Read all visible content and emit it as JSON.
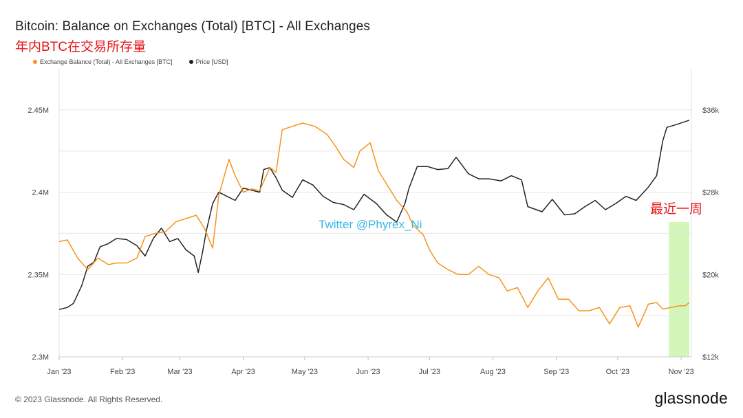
{
  "title": "Bitcoin: Balance on Exchanges (Total) [BTC] - All Exchanges",
  "subtitle": "年内BTC在交易所存量",
  "watermark": "Twitter @Phyrex_Ni",
  "annotation": "最近一周",
  "footer": "© 2023 Glassnode. All Rights Reserved.",
  "brand": "glassnode",
  "colors": {
    "balance": "#f7931a",
    "price": "#222222",
    "highlight": "#c6f3a0",
    "annotation": "#e8141a",
    "watermark": "#38b6e6"
  },
  "chart_data": {
    "type": "line",
    "title": "Bitcoin: Balance on Exchanges (Total) [BTC] - All Exchanges",
    "x_ticks": [
      "Jan '23",
      "Feb '23",
      "Mar '23",
      "Apr '23",
      "May '23",
      "Jun '23",
      "Jul '23",
      "Aug '23",
      "Sep '23",
      "Oct '23",
      "Nov '23"
    ],
    "y_left": {
      "ticks": [
        "2.3M",
        "2.35M",
        "2.4M",
        "2.45M"
      ],
      "tick_values": [
        2.3,
        2.35,
        2.4,
        2.45
      ],
      "range": [
        2.3,
        2.475
      ]
    },
    "y_right": {
      "ticks": [
        "$12k",
        "$20k",
        "$28k",
        "$36k"
      ],
      "tick_values": [
        12,
        20,
        28,
        36
      ],
      "range": [
        12,
        40
      ]
    },
    "grid": "horizontal",
    "legend_position": "top-left",
    "highlight_range": [
      "2023-10-26",
      "2023-11-05"
    ],
    "series": [
      {
        "name": "Exchange Balance (Total) - All Exchanges [BTC]",
        "axis": "left",
        "x": [
          "2023-01-01",
          "2023-01-05",
          "2023-01-10",
          "2023-01-15",
          "2023-01-20",
          "2023-01-25",
          "2023-01-29",
          "2023-02-03",
          "2023-02-08",
          "2023-02-12",
          "2023-02-17",
          "2023-02-22",
          "2023-02-27",
          "2023-03-04",
          "2023-03-09",
          "2023-03-13",
          "2023-03-17",
          "2023-03-20",
          "2023-03-25",
          "2023-03-28",
          "2023-04-01",
          "2023-04-05",
          "2023-04-09",
          "2023-04-14",
          "2023-04-17",
          "2023-04-20",
          "2023-04-25",
          "2023-04-30",
          "2023-05-06",
          "2023-05-12",
          "2023-05-16",
          "2023-05-20",
          "2023-05-25",
          "2023-05-28",
          "2023-06-02",
          "2023-06-06",
          "2023-06-10",
          "2023-06-15",
          "2023-06-20",
          "2023-06-23",
          "2023-06-28",
          "2023-07-01",
          "2023-07-05",
          "2023-07-10",
          "2023-07-15",
          "2023-07-20",
          "2023-07-25",
          "2023-07-30",
          "2023-08-04",
          "2023-08-08",
          "2023-08-13",
          "2023-08-18",
          "2023-08-23",
          "2023-08-28",
          "2023-09-02",
          "2023-09-07",
          "2023-09-12",
          "2023-09-17",
          "2023-09-22",
          "2023-09-27",
          "2023-10-02",
          "2023-10-07",
          "2023-10-11",
          "2023-10-16",
          "2023-10-20",
          "2023-10-23",
          "2023-10-27",
          "2023-10-31",
          "2023-11-03",
          "2023-11-05"
        ],
        "values": [
          2.37,
          2.371,
          2.36,
          2.353,
          2.36,
          2.356,
          2.357,
          2.357,
          2.36,
          2.373,
          2.375,
          2.376,
          2.382,
          2.384,
          2.386,
          2.378,
          2.366,
          2.398,
          2.42,
          2.41,
          2.4,
          2.402,
          2.401,
          2.415,
          2.412,
          2.438,
          2.44,
          2.442,
          2.44,
          2.435,
          2.428,
          2.42,
          2.415,
          2.425,
          2.43,
          2.413,
          2.405,
          2.395,
          2.388,
          2.38,
          2.374,
          2.365,
          2.357,
          2.353,
          2.35,
          2.35,
          2.355,
          2.35,
          2.348,
          2.34,
          2.342,
          2.33,
          2.34,
          2.348,
          2.335,
          2.335,
          2.328,
          2.328,
          2.33,
          2.32,
          2.33,
          2.331,
          2.318,
          2.332,
          2.333,
          2.329,
          2.33,
          2.331,
          2.331,
          2.333
        ]
      },
      {
        "name": "Price [USD]",
        "axis": "right",
        "x": [
          "2023-01-01",
          "2023-01-05",
          "2023-01-08",
          "2023-01-12",
          "2023-01-15",
          "2023-01-18",
          "2023-01-21",
          "2023-01-25",
          "2023-01-29",
          "2023-02-03",
          "2023-02-08",
          "2023-02-12",
          "2023-02-16",
          "2023-02-20",
          "2023-02-24",
          "2023-02-28",
          "2023-03-04",
          "2023-03-08",
          "2023-03-10",
          "2023-03-12",
          "2023-03-14",
          "2023-03-17",
          "2023-03-20",
          "2023-03-24",
          "2023-03-28",
          "2023-04-01",
          "2023-04-05",
          "2023-04-09",
          "2023-04-11",
          "2023-04-14",
          "2023-04-17",
          "2023-04-20",
          "2023-04-25",
          "2023-04-30",
          "2023-05-05",
          "2023-05-10",
          "2023-05-15",
          "2023-05-20",
          "2023-05-25",
          "2023-05-30",
          "2023-06-05",
          "2023-06-10",
          "2023-06-15",
          "2023-06-19",
          "2023-06-21",
          "2023-06-25",
          "2023-06-30",
          "2023-07-05",
          "2023-07-10",
          "2023-07-14",
          "2023-07-20",
          "2023-07-25",
          "2023-07-30",
          "2023-08-05",
          "2023-08-10",
          "2023-08-15",
          "2023-08-18",
          "2023-08-25",
          "2023-08-30",
          "2023-09-05",
          "2023-09-10",
          "2023-09-15",
          "2023-09-20",
          "2023-09-25",
          "2023-09-30",
          "2023-10-05",
          "2023-10-10",
          "2023-10-16",
          "2023-10-20",
          "2023-10-23",
          "2023-10-25",
          "2023-10-30",
          "2023-11-05"
        ],
        "values": [
          16.6,
          16.8,
          17.2,
          18.9,
          20.8,
          21.2,
          22.7,
          23.0,
          23.5,
          23.4,
          22.8,
          21.8,
          23.5,
          24.5,
          23.2,
          23.5,
          22.4,
          21.8,
          20.2,
          22.1,
          24.3,
          26.9,
          28.0,
          27.6,
          27.2,
          28.4,
          28.2,
          28.0,
          30.2,
          30.4,
          29.4,
          28.2,
          27.5,
          29.2,
          28.7,
          27.6,
          27.0,
          26.8,
          26.3,
          27.8,
          26.9,
          25.8,
          25.1,
          26.9,
          28.4,
          30.5,
          30.5,
          30.2,
          30.3,
          31.4,
          29.8,
          29.3,
          29.3,
          29.1,
          29.6,
          29.2,
          26.6,
          26.1,
          27.3,
          25.8,
          25.9,
          26.6,
          27.2,
          26.3,
          26.9,
          27.6,
          27.2,
          28.5,
          29.6,
          33.0,
          34.3,
          34.6,
          35.0
        ]
      }
    ]
  }
}
